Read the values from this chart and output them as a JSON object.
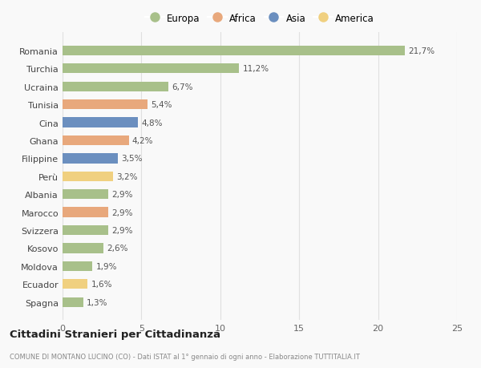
{
  "countries": [
    "Romania",
    "Turchia",
    "Ucraina",
    "Tunisia",
    "Cina",
    "Ghana",
    "Filippine",
    "Perù",
    "Albania",
    "Marocco",
    "Svizzera",
    "Kosovo",
    "Moldova",
    "Ecuador",
    "Spagna"
  ],
  "values": [
    21.7,
    11.2,
    6.7,
    5.4,
    4.8,
    4.2,
    3.5,
    3.2,
    2.9,
    2.9,
    2.9,
    2.6,
    1.9,
    1.6,
    1.3
  ],
  "labels": [
    "21,7%",
    "11,2%",
    "6,7%",
    "5,4%",
    "4,8%",
    "4,2%",
    "3,5%",
    "3,2%",
    "2,9%",
    "2,9%",
    "2,9%",
    "2,6%",
    "1,9%",
    "1,6%",
    "1,3%"
  ],
  "continents": [
    "Europa",
    "Europa",
    "Europa",
    "Africa",
    "Asia",
    "Africa",
    "Asia",
    "America",
    "Europa",
    "Africa",
    "Europa",
    "Europa",
    "Europa",
    "America",
    "Europa"
  ],
  "colors": {
    "Europa": "#a8c08a",
    "Africa": "#e8a87c",
    "Asia": "#6b8fbf",
    "America": "#f0d080"
  },
  "title": "Cittadini Stranieri per Cittadinanza",
  "subtitle": "COMUNE DI MONTANO LUCINO (CO) - Dati ISTAT al 1° gennaio di ogni anno - Elaborazione TUTTITALIA.IT",
  "xlim": [
    0,
    25
  ],
  "xticks": [
    0,
    5,
    10,
    15,
    20,
    25
  ],
  "background_color": "#f9f9f9",
  "grid_color": "#e0e0e0",
  "legend_order": [
    "Europa",
    "Africa",
    "Asia",
    "America"
  ]
}
